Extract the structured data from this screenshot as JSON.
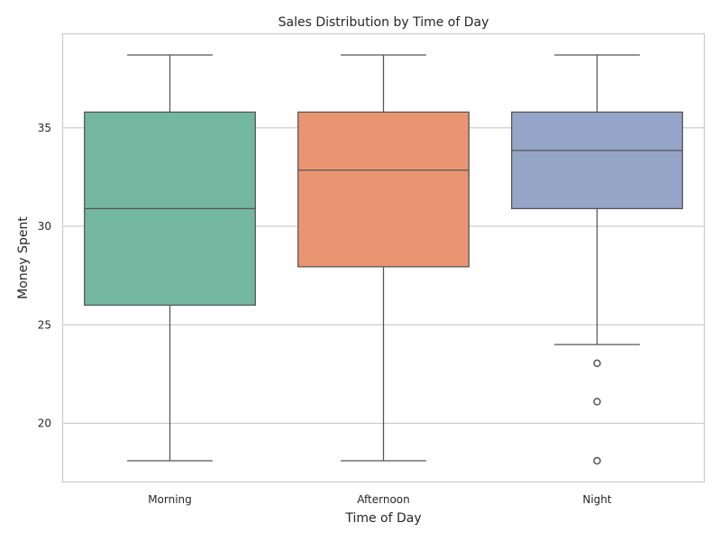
{
  "chart_data": {
    "type": "box",
    "title": "Sales Distribution by Time of Day",
    "xlabel": "Time of Day",
    "ylabel": "Money Spent",
    "ylim": [
      17.05,
      39.75
    ],
    "yticks": [
      20,
      25,
      30,
      35
    ],
    "grid": "horizontal",
    "categories": [
      "Morning",
      "Afternoon",
      "Night"
    ],
    "boxes": [
      {
        "category": "Morning",
        "whisker_low": 18.1,
        "q1": 26.0,
        "median": 30.9,
        "q3": 35.8,
        "whisker_high": 38.7,
        "outliers": [],
        "color": "#73b7a0"
      },
      {
        "category": "Afternoon",
        "whisker_low": 18.1,
        "q1": 27.95,
        "median": 32.85,
        "q3": 35.8,
        "whisker_high": 38.7,
        "outliers": [],
        "color": "#ea9572"
      },
      {
        "category": "Night",
        "whisker_low": 24.0,
        "q1": 30.9,
        "median": 33.85,
        "q3": 35.8,
        "whisker_high": 38.7,
        "outliers": [
          23.05,
          21.1,
          18.1
        ],
        "color": "#95a5c7"
      }
    ]
  }
}
